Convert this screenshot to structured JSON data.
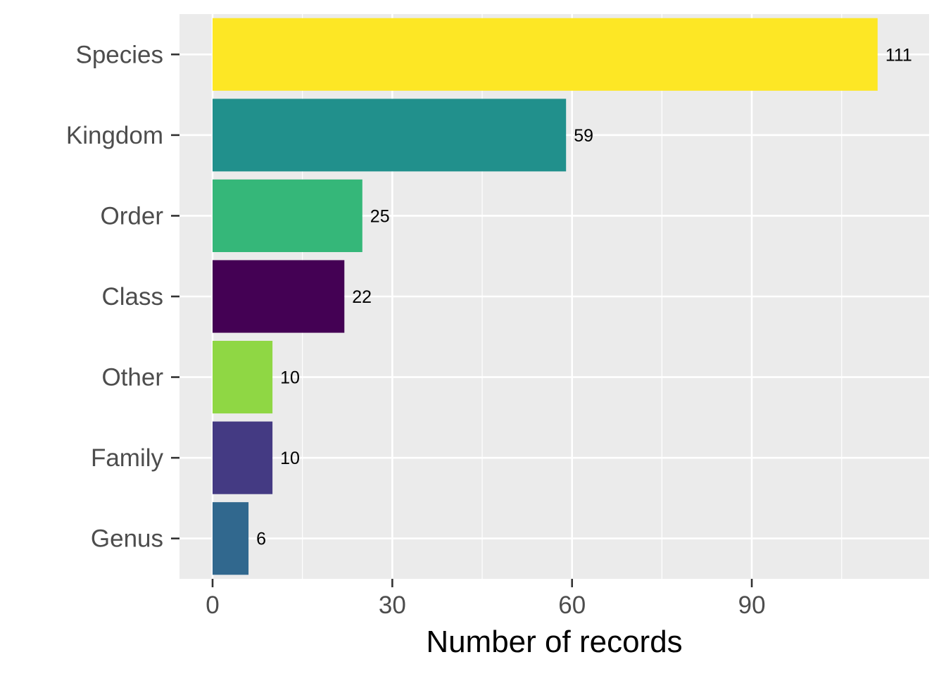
{
  "chart_data": {
    "type": "bar",
    "orientation": "horizontal",
    "categories": [
      "Species",
      "Kingdom",
      "Order",
      "Class",
      "Other",
      "Family",
      "Genus"
    ],
    "values": [
      111,
      59,
      25,
      22,
      10,
      10,
      6
    ],
    "data_labels": [
      "111",
      "59",
      "25",
      "22",
      "10",
      "10",
      "6"
    ],
    "bar_colors": [
      "#FDE725",
      "#21908C",
      "#35B779",
      "#440154",
      "#8FD744",
      "#443A83",
      "#31688E"
    ],
    "title": "",
    "xlabel": "Number of records",
    "ylabel": "",
    "xlim": [
      0,
      115
    ],
    "x_ticks": [
      0,
      30,
      60,
      90
    ],
    "x_tick_labels": [
      "0",
      "30",
      "60",
      "90"
    ],
    "grid": true,
    "legend": "none",
    "panel_background": "#EBEBEB",
    "gridline_color": "#FFFFFF",
    "tick_color": "#333333"
  }
}
